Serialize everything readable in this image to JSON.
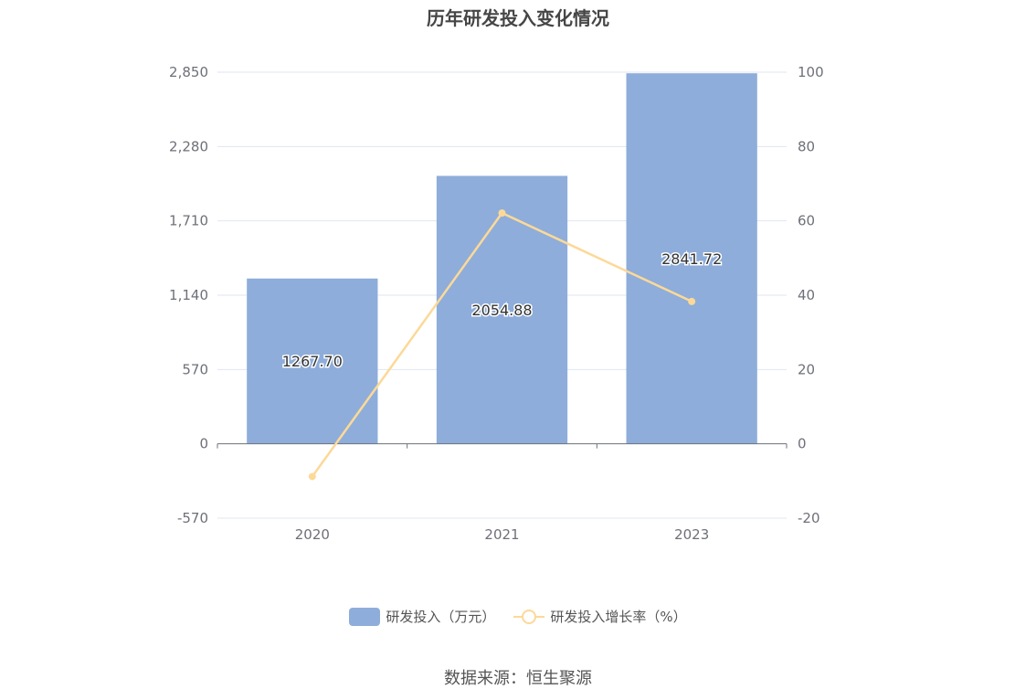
{
  "chart_data": {
    "type": "bar",
    "title": "历年研发投入变化情况",
    "categories": [
      "2020",
      "2021",
      "2023"
    ],
    "series": [
      {
        "name": "研发投入（万元）",
        "type": "bar",
        "axis": "left",
        "values": [
          1267.7,
          2054.88,
          2841.72
        ],
        "labels": [
          "1267.70",
          "2054.88",
          "2841.72"
        ],
        "color": "#8eadda"
      },
      {
        "name": "研发投入增长率（%）",
        "type": "line",
        "axis": "right",
        "values": [
          -8.8,
          62.1,
          38.3
        ],
        "color": "#fcd998"
      }
    ],
    "y_left": {
      "ylim": [
        -570,
        2850
      ],
      "ticks": [
        -570,
        0,
        570,
        1140,
        1710,
        2280,
        2850
      ],
      "tick_labels": [
        "-570",
        "0",
        "570",
        "1,140",
        "1,710",
        "2,280",
        "2,850"
      ]
    },
    "y_right": {
      "ylim": [
        -20,
        100
      ],
      "ticks": [
        -20,
        0,
        20,
        40,
        60,
        80,
        100
      ],
      "tick_labels": [
        "-20",
        "0",
        "20",
        "40",
        "60",
        "80",
        "100"
      ]
    },
    "grid": true,
    "legend_position": "bottom-center"
  },
  "legend": {
    "bar_label": "研发投入（万元）",
    "line_label": "研发投入增长率（%）"
  },
  "source": "数据来源：恒生聚源"
}
